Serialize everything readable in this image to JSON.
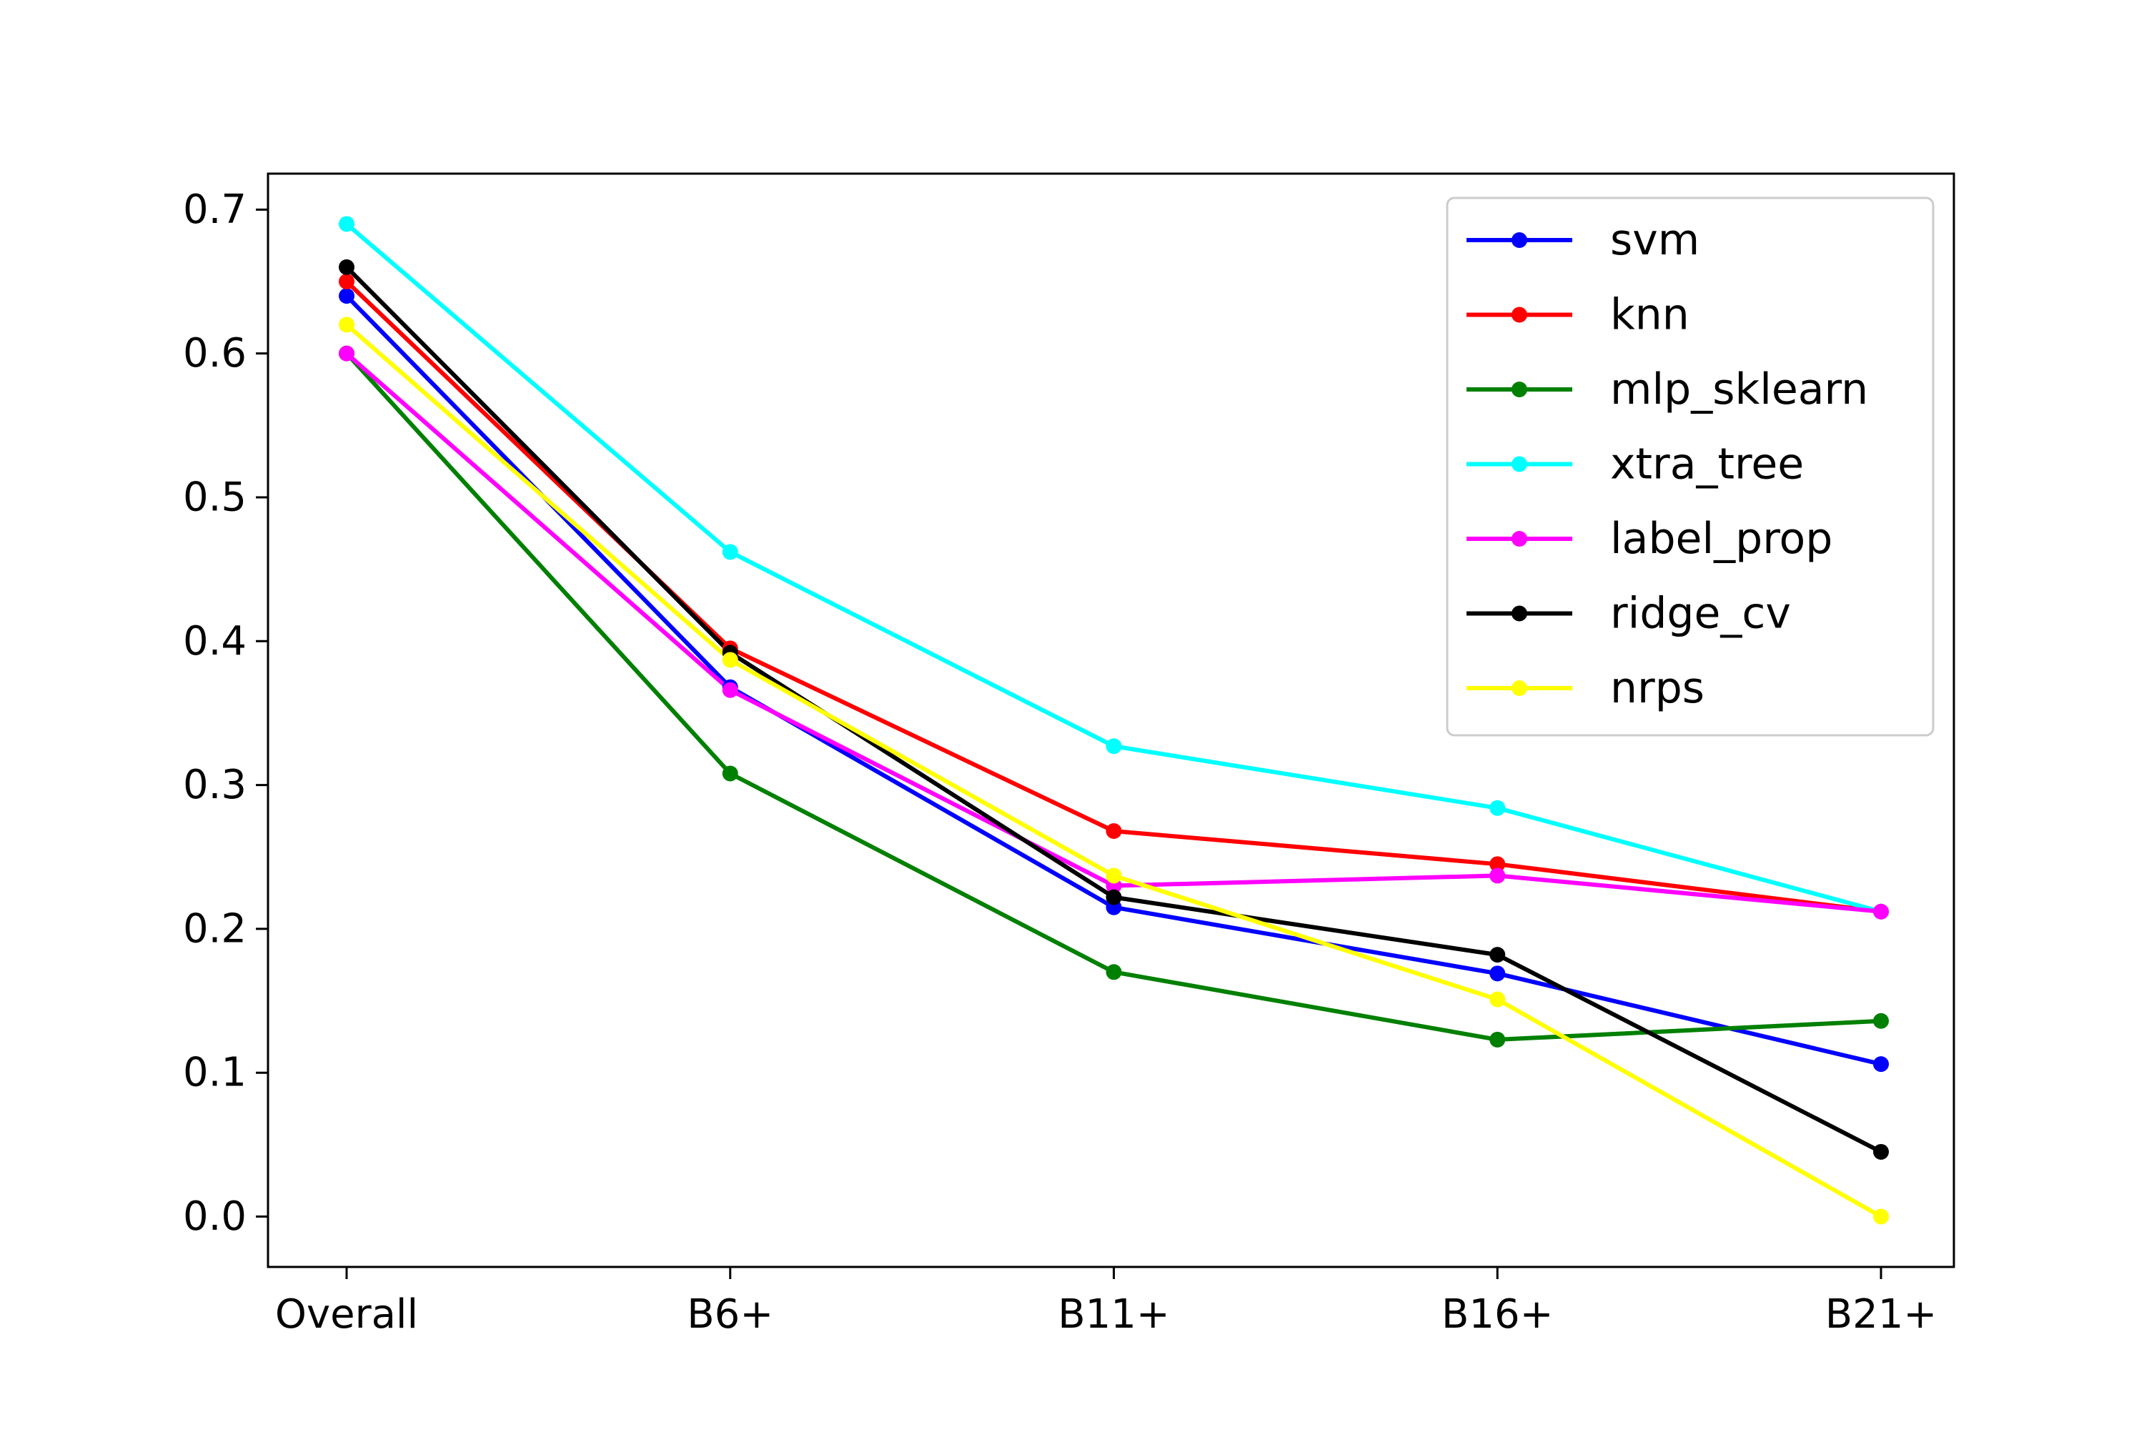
{
  "chart_data": {
    "type": "line",
    "title": "",
    "xlabel": "",
    "ylabel": "",
    "categories": [
      "Overall",
      "B6+",
      "B11+",
      "B16+",
      "B21+"
    ],
    "ylim": [
      -0.035,
      0.725
    ],
    "yticks": [
      0.0,
      0.1,
      0.2,
      0.3,
      0.4,
      0.5,
      0.6,
      0.7
    ],
    "ytick_labels": [
      "0.0",
      "0.1",
      "0.2",
      "0.3",
      "0.4",
      "0.5",
      "0.6",
      "0.7"
    ],
    "grid": false,
    "legend_position": "top-right",
    "series": [
      {
        "name": "svm",
        "color": "#0000ff",
        "values": [
          0.64,
          0.368,
          0.215,
          0.169,
          0.106
        ]
      },
      {
        "name": "knn",
        "color": "#ff0000",
        "values": [
          0.65,
          0.395,
          0.268,
          0.245,
          0.212
        ]
      },
      {
        "name": "mlp_sklearn",
        "color": "#008000",
        "values": [
          0.6,
          0.308,
          0.17,
          0.123,
          0.136
        ]
      },
      {
        "name": "xtra_tree",
        "color": "#00ffff",
        "values": [
          0.69,
          0.462,
          0.327,
          0.284,
          0.212
        ]
      },
      {
        "name": "label_prop",
        "color": "#ff00ff",
        "values": [
          0.6,
          0.366,
          0.23,
          0.237,
          0.212
        ]
      },
      {
        "name": "ridge_cv",
        "color": "#000000",
        "values": [
          0.66,
          0.392,
          0.222,
          0.182,
          0.045
        ]
      },
      {
        "name": "nrps",
        "color": "#ffff00",
        "values": [
          0.62,
          0.387,
          0.237,
          0.151,
          0.0
        ]
      }
    ]
  }
}
